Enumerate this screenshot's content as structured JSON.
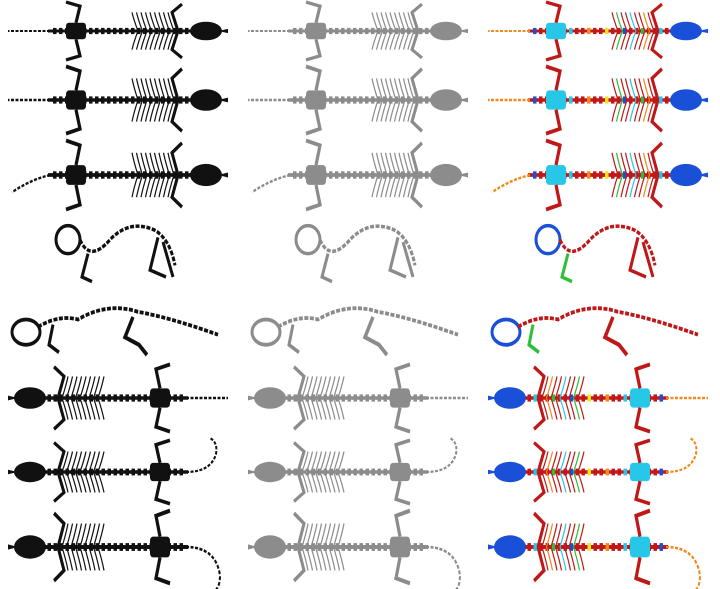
{
  "figure": {
    "columns": [
      {
        "id": "binary",
        "render": "black"
      },
      {
        "id": "volume",
        "render": "gray"
      },
      {
        "id": "heatmap",
        "render": "jet"
      }
    ],
    "rows": [
      {
        "pose": "dorsal-straight",
        "tail": "straight"
      },
      {
        "pose": "dorsal-spread",
        "tail": "straight"
      },
      {
        "pose": "dorsal-compact",
        "tail": "curve-down"
      },
      {
        "pose": "lateral-curled",
        "tail": "none"
      },
      {
        "pose": "lateral-extended",
        "tail": "straight"
      },
      {
        "pose": "dorsal-spread-reverse",
        "tail": "straight"
      },
      {
        "pose": "dorsal-reverse-curled",
        "tail": "hook"
      },
      {
        "pose": "dorsal-reverse-tail-loop",
        "tail": "loop"
      }
    ],
    "colors": {
      "binary": "#111111",
      "volume": "#8c8c8c",
      "heatmap_primary": "#c01818",
      "heatmap_accents": [
        "#1a4fd8",
        "#27c7e8",
        "#f2e21a",
        "#2bbf3a",
        "#f08a1a"
      ]
    }
  }
}
